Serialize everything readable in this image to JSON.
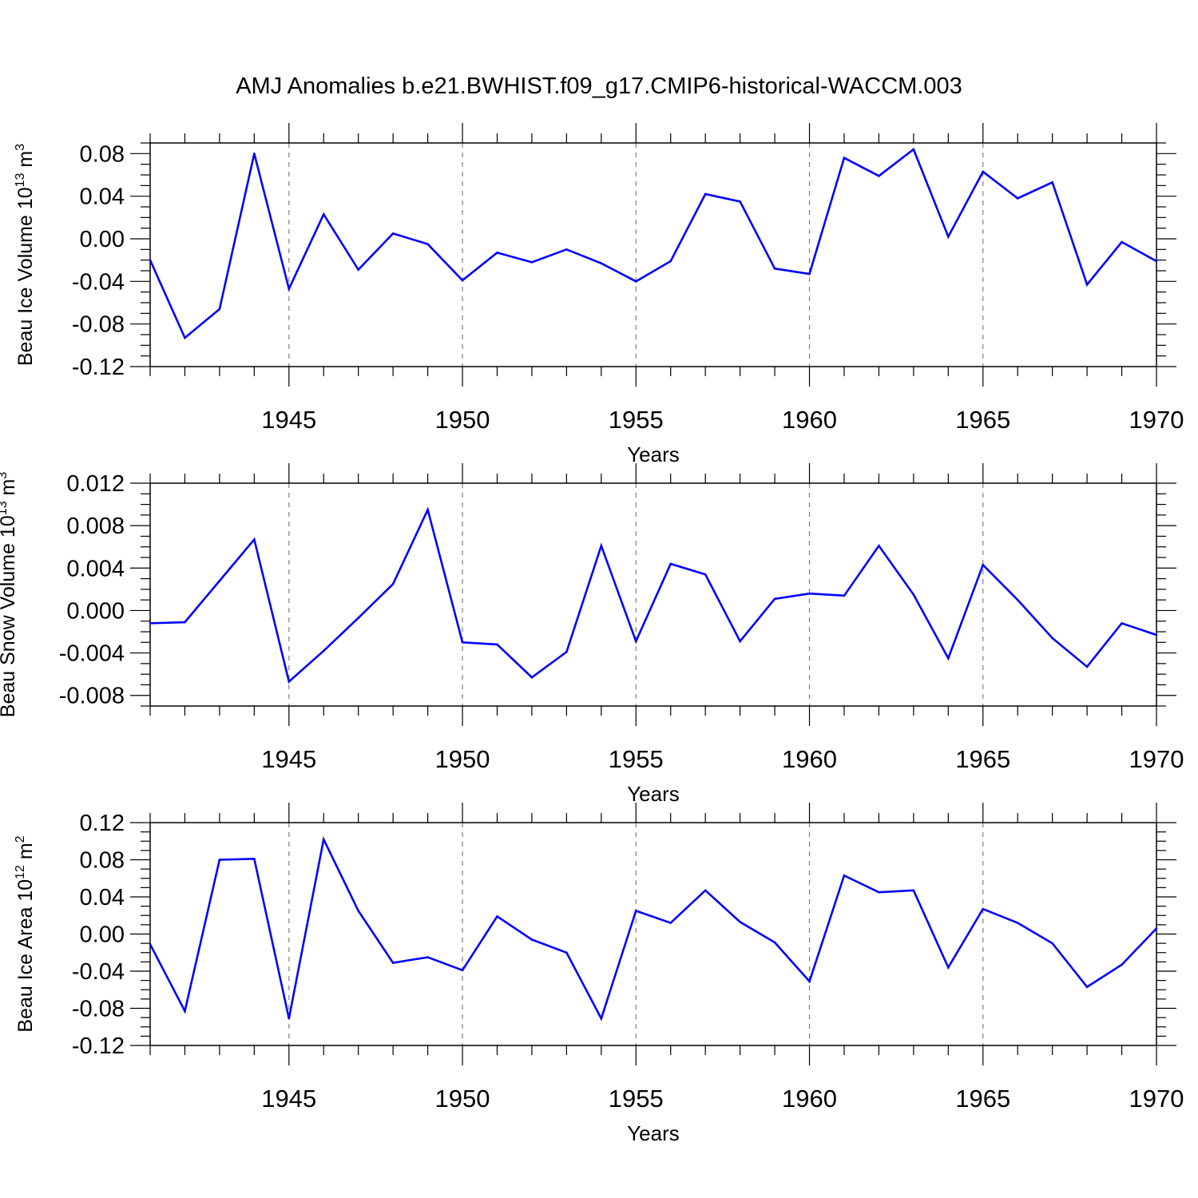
{
  "title": "AMJ Anomalies b.e21.BWHIST.f09_g17.CMIP6-historical-WACCM.003",
  "colors": {
    "line": "#0000ff",
    "frame": "#000000",
    "grid": "#808080"
  },
  "chart_data": [
    {
      "type": "line",
      "ylabel": {
        "base": "Beau Ice Volume 10",
        "exp": "13",
        "unit": " m",
        "unit_exp": "3"
      },
      "xlabel": "Years",
      "xlim": [
        1941,
        1970
      ],
      "ylim": [
        -0.12,
        0.09
      ],
      "yticks": [
        "-0.12",
        "-0.08",
        "-0.04",
        "0.00",
        "0.04",
        "0.08"
      ],
      "xticks": [
        "1945",
        "1950",
        "1955",
        "1960",
        "1965",
        "1970"
      ],
      "x": [
        1941,
        1942,
        1943,
        1944,
        1945,
        1946,
        1947,
        1948,
        1949,
        1950,
        1951,
        1952,
        1953,
        1954,
        1955,
        1956,
        1957,
        1958,
        1959,
        1960,
        1961,
        1962,
        1963,
        1964,
        1965,
        1966,
        1967,
        1968,
        1969,
        1970
      ],
      "series": [
        {
          "values": [
            -0.02,
            -0.093,
            -0.066,
            0.08,
            -0.047,
            0.023,
            -0.029,
            0.005,
            -0.005,
            -0.039,
            -0.013,
            -0.022,
            -0.01,
            -0.023,
            -0.04,
            -0.021,
            0.042,
            0.035,
            -0.028,
            -0.033,
            0.076,
            0.059,
            0.084,
            0.002,
            0.063,
            0.038,
            0.053,
            -0.043,
            -0.003,
            -0.021
          ]
        }
      ],
      "grid": "dashed vertical lines at labeled years"
    },
    {
      "type": "line",
      "ylabel": {
        "base": "Beau Snow Volume 10",
        "exp": "13",
        "unit": " m",
        "unit_exp": "3"
      },
      "xlabel": "Years",
      "xlim": [
        1941,
        1970
      ],
      "ylim": [
        -0.009,
        0.012
      ],
      "yticks": [
        "-0.008",
        "-0.004",
        "0.000",
        "0.004",
        "0.008",
        "0.012"
      ],
      "xticks": [
        "1945",
        "1950",
        "1955",
        "1960",
        "1965",
        "1970"
      ],
      "x": [
        1941,
        1942,
        1943,
        1944,
        1945,
        1946,
        1947,
        1948,
        1949,
        1950,
        1951,
        1952,
        1953,
        1954,
        1955,
        1956,
        1957,
        1958,
        1959,
        1960,
        1961,
        1962,
        1963,
        1964,
        1965,
        1966,
        1967,
        1968,
        1969,
        1970
      ],
      "series": [
        {
          "values": [
            -0.0012,
            -0.0011,
            0.0028,
            0.0067,
            -0.0067,
            -0.0038,
            -0.0007,
            0.0025,
            0.0095,
            -0.003,
            -0.0032,
            -0.0063,
            -0.0039,
            0.0061,
            -0.0029,
            0.0044,
            0.0034,
            -0.0029,
            0.0011,
            0.0016,
            0.0014,
            0.0061,
            0.0015,
            -0.0045,
            0.0043,
            0.001,
            -0.0026,
            -0.0053,
            -0.0012,
            -0.0023
          ]
        }
      ],
      "grid": "dashed vertical lines at labeled years"
    },
    {
      "type": "line",
      "ylabel": {
        "base": "Beau Ice Area 10",
        "exp": "12",
        "unit": " m",
        "unit_exp": "2"
      },
      "xlabel": "Years",
      "xlim": [
        1941,
        1970
      ],
      "ylim": [
        -0.12,
        0.12
      ],
      "yticks": [
        "-0.12",
        "-0.08",
        "-0.04",
        "0.00",
        "0.04",
        "0.08",
        "0.12"
      ],
      "xticks": [
        "1945",
        "1950",
        "1955",
        "1960",
        "1965",
        "1970"
      ],
      "x": [
        1941,
        1942,
        1943,
        1944,
        1945,
        1946,
        1947,
        1948,
        1949,
        1950,
        1951,
        1952,
        1953,
        1954,
        1955,
        1956,
        1957,
        1958,
        1959,
        1960,
        1961,
        1962,
        1963,
        1964,
        1965,
        1966,
        1967,
        1968,
        1969,
        1970
      ],
      "series": [
        {
          "values": [
            -0.011,
            -0.083,
            0.08,
            0.081,
            -0.091,
            0.102,
            0.025,
            -0.031,
            -0.025,
            -0.039,
            0.019,
            -0.006,
            -0.02,
            -0.091,
            0.025,
            0.012,
            0.047,
            0.013,
            -0.009,
            -0.051,
            0.063,
            0.045,
            0.047,
            -0.036,
            0.027,
            0.012,
            -0.01,
            -0.057,
            -0.033,
            0.006
          ]
        }
      ],
      "grid": "dashed vertical lines at labeled years"
    }
  ]
}
